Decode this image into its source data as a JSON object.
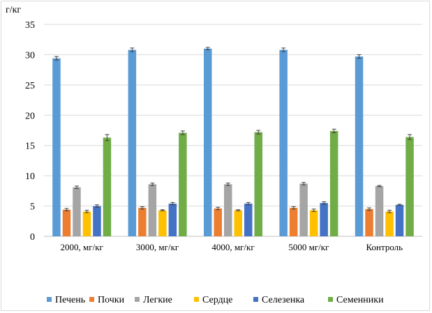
{
  "chart_data": {
    "type": "bar",
    "ylabel": "г/кг",
    "ylim": [
      0,
      35
    ],
    "yticks": [
      0,
      5,
      10,
      15,
      20,
      25,
      30,
      35
    ],
    "grid": true,
    "legend_position": "bottom",
    "categories": [
      "2000, мг/кг",
      "3000, мг/кг",
      "4000, мг/кг",
      "5000 мг/кг",
      "Контроль"
    ],
    "series": [
      {
        "name": "Печень",
        "color": "#5b9bd5",
        "values": [
          29.4,
          30.8,
          31.0,
          30.8,
          29.7
        ],
        "errors": [
          0.3,
          0.3,
          0.2,
          0.3,
          0.3
        ]
      },
      {
        "name": "Почки",
        "color": "#ed7d31",
        "values": [
          4.4,
          4.7,
          4.6,
          4.7,
          4.5
        ],
        "errors": [
          0.2,
          0.2,
          0.2,
          0.2,
          0.2
        ]
      },
      {
        "name": "Легкие",
        "color": "#a5a5a5",
        "values": [
          8.1,
          8.6,
          8.6,
          8.7,
          8.3
        ],
        "errors": [
          0.2,
          0.2,
          0.2,
          0.2,
          0.1
        ]
      },
      {
        "name": "Сердце",
        "color": "#ffc000",
        "values": [
          4.1,
          4.3,
          4.3,
          4.3,
          4.1
        ],
        "errors": [
          0.2,
          0.1,
          0.1,
          0.2,
          0.2
        ]
      },
      {
        "name": "Селезенка",
        "color": "#4472c4",
        "values": [
          5.0,
          5.4,
          5.4,
          5.5,
          5.2
        ],
        "errors": [
          0.2,
          0.2,
          0.2,
          0.2,
          0.1
        ]
      },
      {
        "name": "Семенники",
        "color": "#70ad47",
        "values": [
          16.3,
          17.1,
          17.2,
          17.4,
          16.4
        ],
        "errors": [
          0.5,
          0.3,
          0.3,
          0.3,
          0.4
        ]
      }
    ]
  }
}
